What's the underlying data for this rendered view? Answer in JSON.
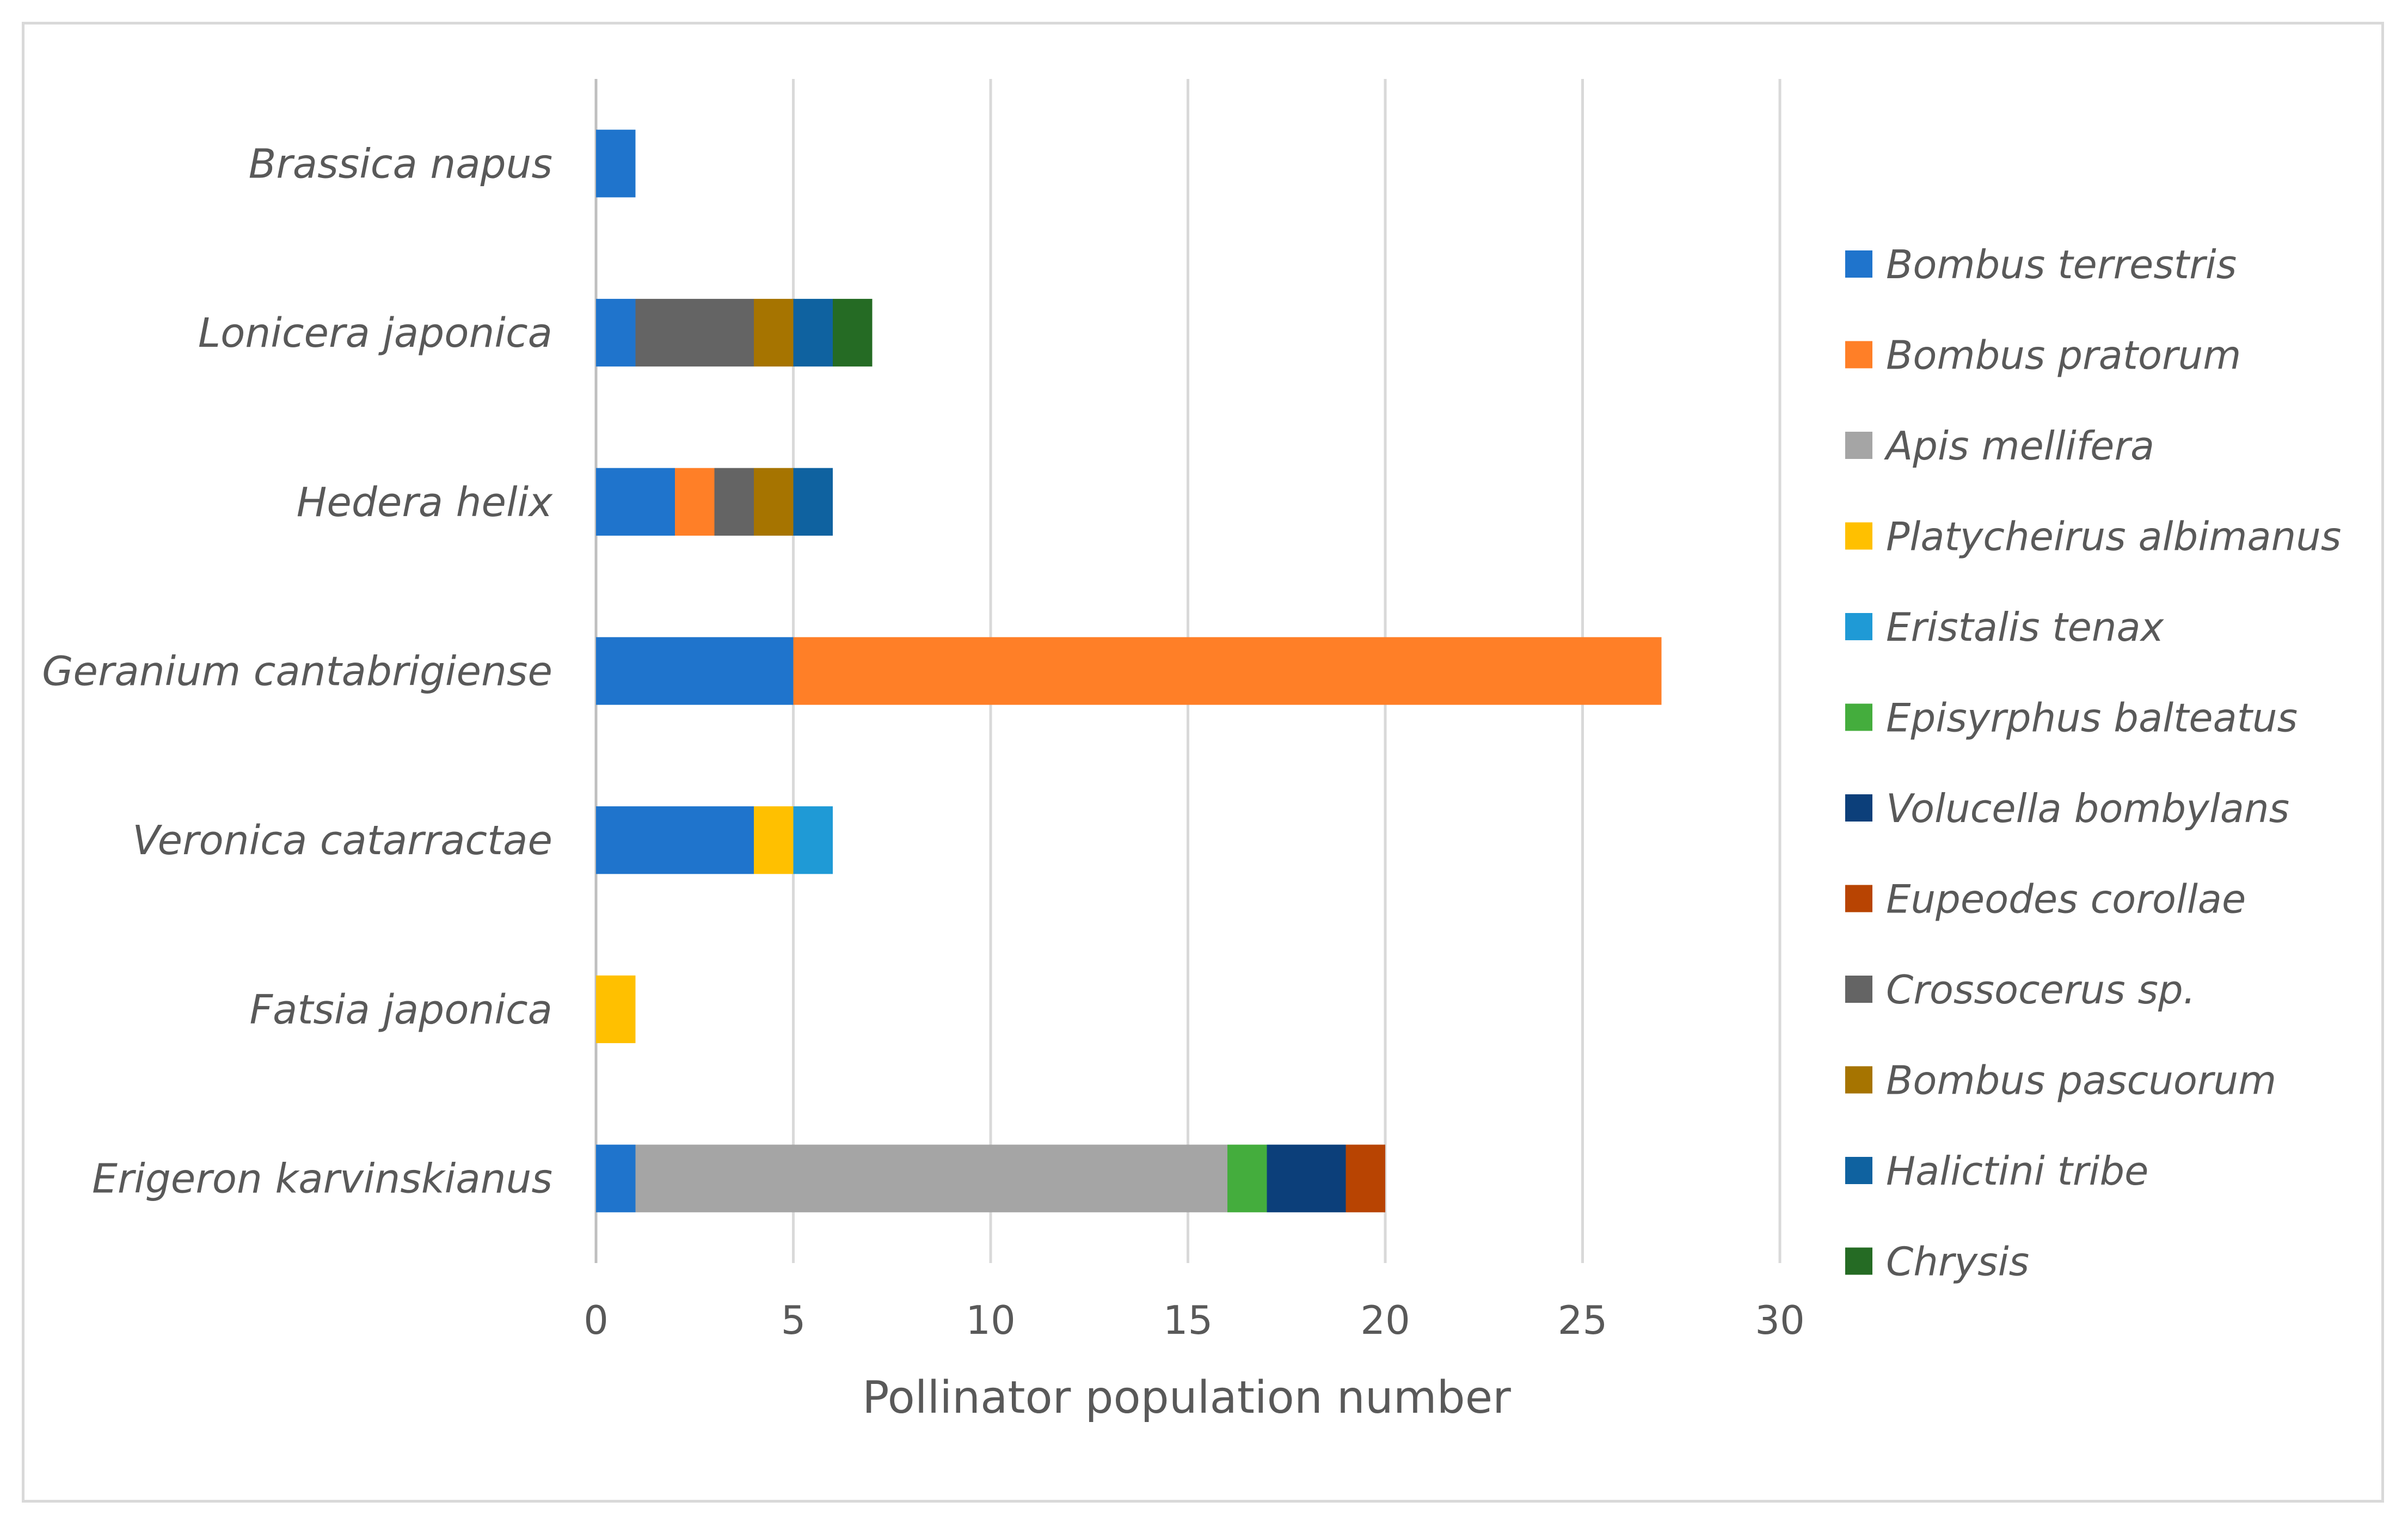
{
  "chart_data": {
    "type": "bar",
    "orientation": "horizontal",
    "stacked": true,
    "title": "",
    "xlabel": "Pollinator population number",
    "ylabel": "",
    "xlim": [
      0,
      30
    ],
    "xticks": [
      "0",
      "5",
      "10",
      "15",
      "20",
      "25",
      "30"
    ],
    "categories": [
      "Brassica napus",
      "Lonicera japonica",
      "Hedera helix",
      "Geranium cantabrigiense",
      "Veronica catarractae",
      "Fatsia japonica",
      "Erigeron karvinskianus"
    ],
    "series": [
      {
        "name": "Bombus terrestris",
        "color": "#1f74cc",
        "values": [
          1,
          1,
          2,
          5,
          4,
          0,
          1
        ]
      },
      {
        "name": "Bombus pratorum",
        "color": "#ff7f27",
        "values": [
          0,
          0,
          1,
          22,
          0,
          0,
          0
        ]
      },
      {
        "name": "Apis mellifera",
        "color": "#a5a5a5",
        "values": [
          0,
          0,
          0,
          0,
          0,
          0,
          15
        ]
      },
      {
        "name": "Platycheirus albimanus",
        "color": "#ffc000",
        "values": [
          0,
          0,
          0,
          0,
          1,
          1,
          0
        ]
      },
      {
        "name": "Eristalis tenax",
        "color": "#1f9ad6",
        "values": [
          0,
          0,
          0,
          0,
          1,
          0,
          0
        ]
      },
      {
        "name": "Episyrphus balteatus",
        "color": "#44ad3d",
        "values": [
          0,
          0,
          0,
          0,
          0,
          0,
          1
        ]
      },
      {
        "name": "Volucella bombylans",
        "color": "#0c3f7a",
        "values": [
          0,
          0,
          0,
          0,
          0,
          0,
          2
        ]
      },
      {
        "name": "Eupeodes corollae",
        "color": "#b84402",
        "values": [
          0,
          0,
          0,
          0,
          0,
          0,
          1
        ]
      },
      {
        "name": "Crossocerus sp.",
        "color": "#646464",
        "values": [
          0,
          3,
          1,
          0,
          0,
          0,
          0
        ]
      },
      {
        "name": "Bombus pascuorum",
        "color": "#a67400",
        "values": [
          0,
          1,
          1,
          0,
          0,
          0,
          0
        ]
      },
      {
        "name": "Halictini tribe",
        "color": "#0f62a0",
        "values": [
          0,
          1,
          1,
          0,
          0,
          0,
          0
        ]
      },
      {
        "name": "Chrysis",
        "color": "#256b24",
        "values": [
          0,
          1,
          0,
          0,
          0,
          0,
          0
        ]
      }
    ],
    "grid": true,
    "legend_position": "right"
  }
}
